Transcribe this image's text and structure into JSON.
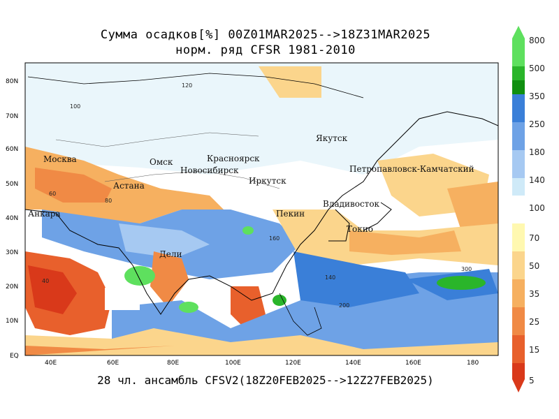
{
  "title_line1": "Сумма осадков[%] 00Z01MAR2025-->18Z31MAR2025",
  "title_line2": "норм. ряд CFSR 1981-2010",
  "subtitle": "28 чл. ансамбль CFSV2(18Z20FEB2025-->12Z27FEB2025)",
  "lat_ticks": [
    "80N",
    "70N",
    "60N",
    "50N",
    "40N",
    "30N",
    "20N",
    "10N",
    "EQ"
  ],
  "lon_ticks": [
    "40E",
    "60E",
    "80E",
    "100E",
    "120E",
    "140E",
    "160E",
    "180"
  ],
  "colorbar": {
    "upper": [
      {
        "label": "800",
        "color": "#5ee05e"
      },
      {
        "label": "500",
        "color": "#2ab52a"
      },
      {
        "label": "350",
        "color": "#108f10"
      },
      {
        "label": "250",
        "color": "#3a7fd8"
      },
      {
        "label": "180",
        "color": "#6ea2e6"
      },
      {
        "label": "140",
        "color": "#a6c9f2"
      },
      {
        "label": "100",
        "color": "#cfeaf8"
      }
    ],
    "lower": [
      {
        "label": "70",
        "color": "#fff8b0"
      },
      {
        "label": "50",
        "color": "#fbd58c"
      },
      {
        "label": "35",
        "color": "#f6b060"
      },
      {
        "label": "25",
        "color": "#f08a45"
      },
      {
        "label": "15",
        "color": "#e8602c"
      },
      {
        "label": "5",
        "color": "#d9391a"
      }
    ],
    "bottom_label": "5"
  },
  "cities": [
    {
      "name": "Москва"
    },
    {
      "name": "Омск"
    },
    {
      "name": "Красноярск"
    },
    {
      "name": "Новосибирск"
    },
    {
      "name": "Иркутск"
    },
    {
      "name": "Астана"
    },
    {
      "name": "Якутск"
    },
    {
      "name": "Петропавловск-Камчатский"
    },
    {
      "name": "Владивосток"
    },
    {
      "name": "Пекин"
    },
    {
      "name": "Токио"
    },
    {
      "name": "Дели"
    },
    {
      "name": "Анкара"
    }
  ],
  "contour_labels": [
    "100",
    "120",
    "140",
    "160",
    "200",
    "300",
    "80",
    "60",
    "40"
  ]
}
